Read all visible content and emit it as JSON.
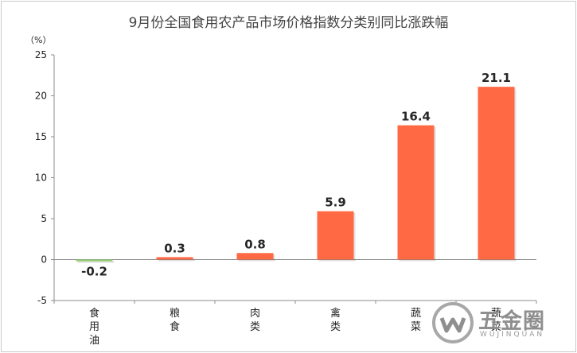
{
  "chart_data": {
    "type": "bar",
    "title": "9月份全国食用农产品市场价格指数分类别同比涨跌幅",
    "unit_label": "（%）",
    "categories": [
      "食用油",
      "粮食",
      "肉类",
      "禽类",
      "蔬菜",
      "蔬菜"
    ],
    "values": [
      -0.2,
      0.3,
      0.8,
      5.9,
      16.4,
      21.1
    ],
    "data_labels": [
      "-0.2",
      "0.3",
      "0.8",
      "5.9",
      "16.4",
      "21.1"
    ],
    "yticks": [
      -5,
      0,
      5,
      10,
      15,
      20,
      25
    ],
    "ylim": [
      -5,
      25
    ],
    "grid": false,
    "colors": {
      "positive": "#ff6a45",
      "negative": "#8fcf6a",
      "axis": "#8c8c8c"
    }
  },
  "watermark": {
    "text": "五金圈",
    "subtext": "WUJINQUAN"
  }
}
